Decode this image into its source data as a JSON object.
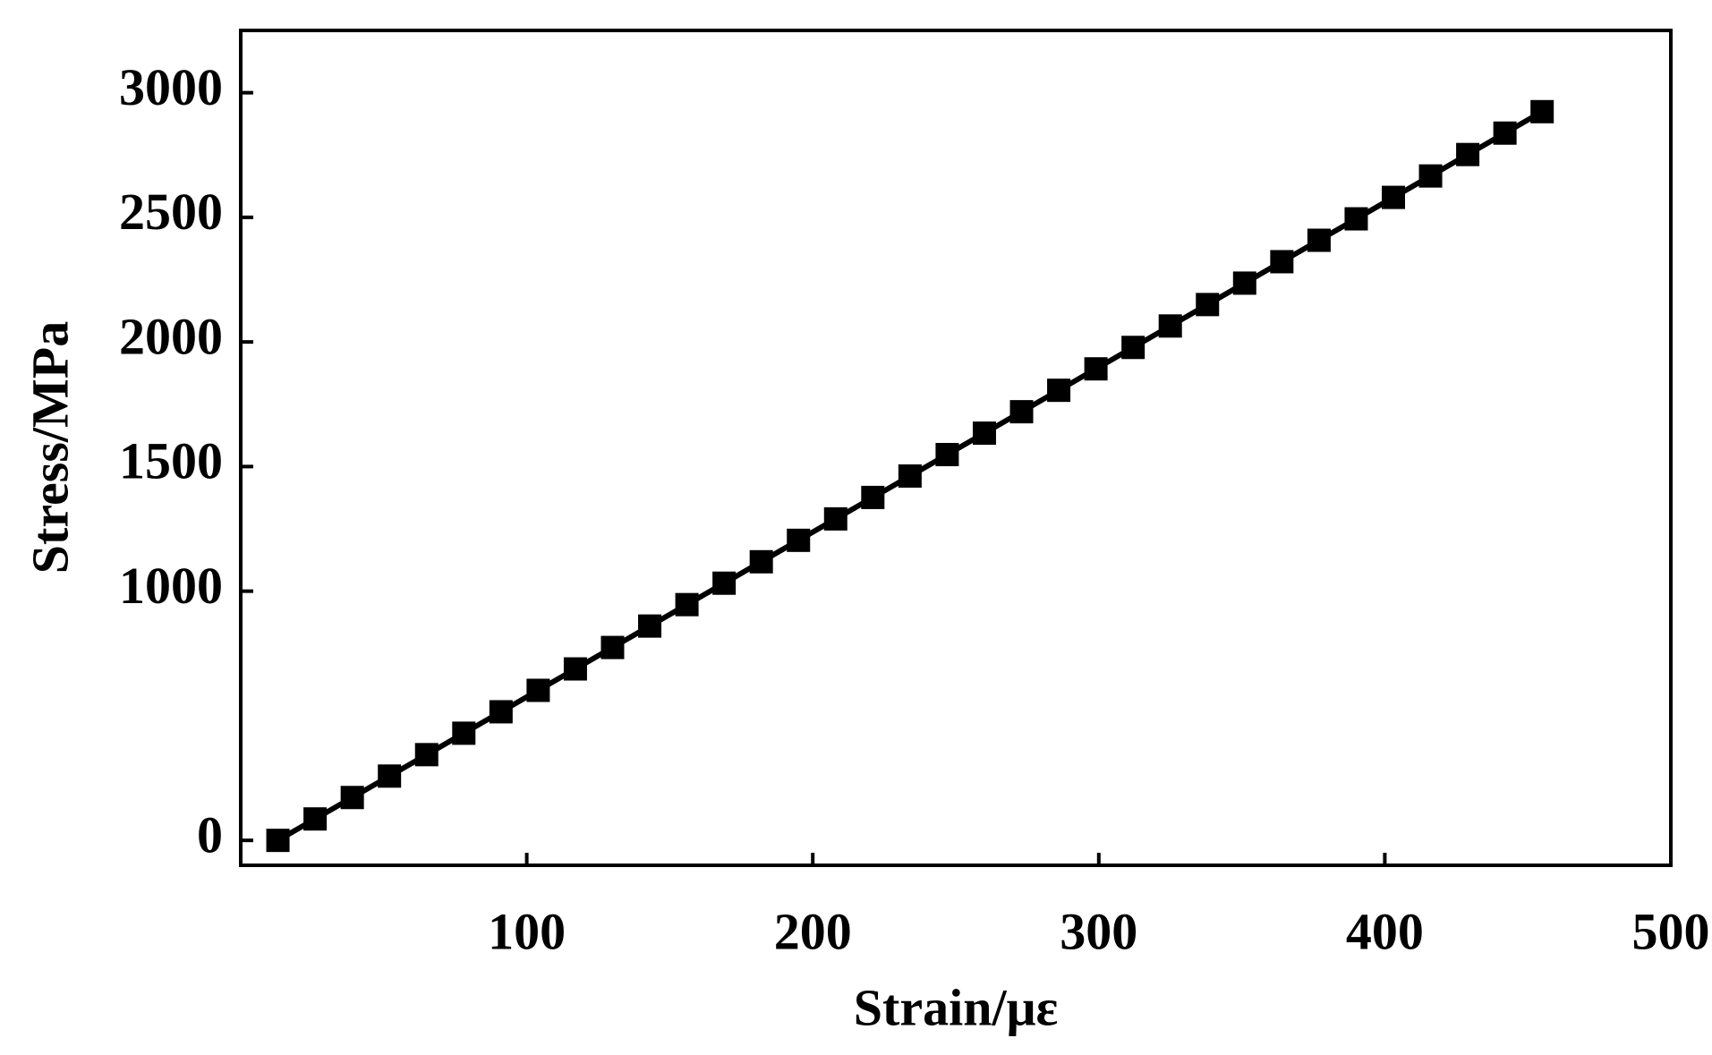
{
  "chart_data": {
    "type": "line",
    "x_label": "Strain/με",
    "y_label": "Stress/MPa",
    "x": [
      13,
      26,
      39,
      52,
      65,
      78,
      91,
      104,
      117,
      130,
      143,
      156,
      169,
      182,
      195,
      208,
      221,
      234,
      247,
      260,
      273,
      286,
      299,
      312,
      325,
      338,
      351,
      364,
      377,
      390,
      403,
      416,
      429,
      442,
      455
    ],
    "series": [
      {
        "color": "#000000",
        "values": [
          0,
          86,
          172,
          258,
          344,
          430,
          516,
          602,
          688,
          774,
          860,
          946,
          1032,
          1118,
          1204,
          1290,
          1376,
          1462,
          1548,
          1634,
          1720,
          1806,
          1892,
          1978,
          2064,
          2150,
          2236,
          2322,
          2408,
          2494,
          2580,
          2666,
          2752,
          2838,
          2924
        ]
      }
    ],
    "xlim": [
      0,
      500
    ],
    "xticks": [
      100,
      200,
      300,
      400,
      500
    ],
    "ylim": [
      -100,
      3250
    ],
    "yticks": [
      0,
      1000,
      1500,
      2000,
      2500,
      3000
    ],
    "marker": "square"
  }
}
